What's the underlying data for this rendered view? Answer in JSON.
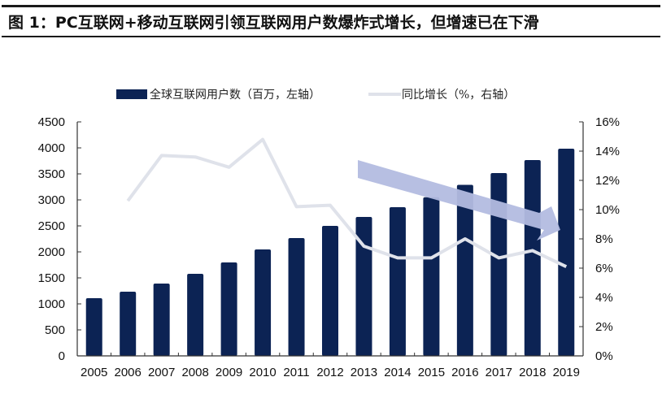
{
  "title": "图 1：PC互联网+移动互联网引领互联网用户数爆炸式增长，但增速已在下滑",
  "colors": {
    "bar": "#0c2354",
    "line": "#dfe2ea",
    "arrow": "#b3bce0",
    "axis": "#333333"
  },
  "chart_data": {
    "type": "bar+line",
    "title": "图 1：PC互联网+移动互联网引领互联网用户数爆炸式增长，但增速已在下滑",
    "categories": [
      "2005",
      "2006",
      "2007",
      "2008",
      "2009",
      "2010",
      "2011",
      "2012",
      "2013",
      "2014",
      "2015",
      "2016",
      "2017",
      "2018",
      "2019"
    ],
    "series": [
      {
        "name": "全球互联网用户数（百万，左轴）",
        "type": "bar",
        "axis": "left",
        "values": [
          1110,
          1234,
          1390,
          1578,
          1797,
          2047,
          2266,
          2500,
          2672,
          2860,
          3050,
          3290,
          3516,
          3766,
          3984
        ]
      },
      {
        "name": "同比增长（%，右轴）",
        "type": "line",
        "axis": "right",
        "values": [
          null,
          10.6,
          13.7,
          13.6,
          12.9,
          14.8,
          10.2,
          10.3,
          7.5,
          6.7,
          6.7,
          8.0,
          6.7,
          7.2,
          6.1
        ]
      }
    ],
    "left_axis": {
      "ylim": [
        0,
        4500
      ],
      "ticks": [
        "0",
        "500",
        "1000",
        "1500",
        "2000",
        "2500",
        "3000",
        "3500",
        "4000",
        "4500"
      ]
    },
    "right_axis": {
      "ylim": [
        0,
        16
      ],
      "ticks": [
        "0%",
        "2%",
        "4%",
        "6%",
        "8%",
        "10%",
        "12%",
        "14%",
        "16%"
      ]
    },
    "legend": {
      "placement": "top",
      "items": [
        "全球互联网用户数（百万，左轴）",
        "同比增长（%，右轴）"
      ]
    },
    "annotation": "downward-trend-arrow",
    "grid": false
  }
}
